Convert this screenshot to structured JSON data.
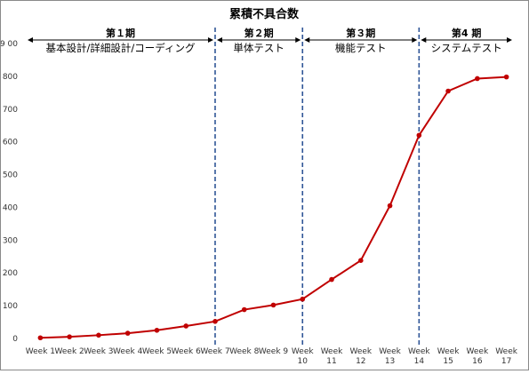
{
  "chart_data": {
    "type": "line",
    "title": "累積不具合数",
    "categories": [
      [
        "Week 1"
      ],
      [
        "Week 2"
      ],
      [
        "Week 3"
      ],
      [
        "Week 4"
      ],
      [
        "Week 5"
      ],
      [
        "Week 6"
      ],
      [
        "Week 7"
      ],
      [
        "Week 8"
      ],
      [
        "Week 9"
      ],
      [
        "Week",
        "10"
      ],
      [
        "Week",
        "11"
      ],
      [
        "Week",
        "12"
      ],
      [
        "Week",
        "13"
      ],
      [
        "Week",
        "14"
      ],
      [
        "Week",
        "15"
      ],
      [
        "Week",
        "16"
      ],
      [
        "Week",
        "17"
      ]
    ],
    "series": [
      {
        "values": [
          2,
          5,
          10,
          16,
          25,
          38,
          52,
          88,
          102,
          120,
          180,
          238,
          405,
          620,
          755,
          793,
          798
        ]
      }
    ],
    "ylim": [
      0,
      900
    ],
    "yticks": [
      0,
      100,
      200,
      300,
      400,
      500,
      600,
      700,
      800,
      900
    ],
    "ytick_labels": [
      "0",
      "100",
      "200",
      "300",
      "400",
      "500",
      "600",
      "700",
      "800",
      "9 00"
    ],
    "grid": false,
    "line_color": "#c00000",
    "divider_color": "#2f5597",
    "phase_dividers_after": [
      "Week 7",
      "Week 10",
      "Week 14"
    ],
    "phases": [
      {
        "name": "第１期",
        "desc": "基本設計/詳細設計/コーディング"
      },
      {
        "name": "第２期",
        "desc": "単体テスト"
      },
      {
        "name": "第３期",
        "desc": "機能テスト"
      },
      {
        "name": "第4 期",
        "desc": "システムテスト"
      }
    ]
  }
}
